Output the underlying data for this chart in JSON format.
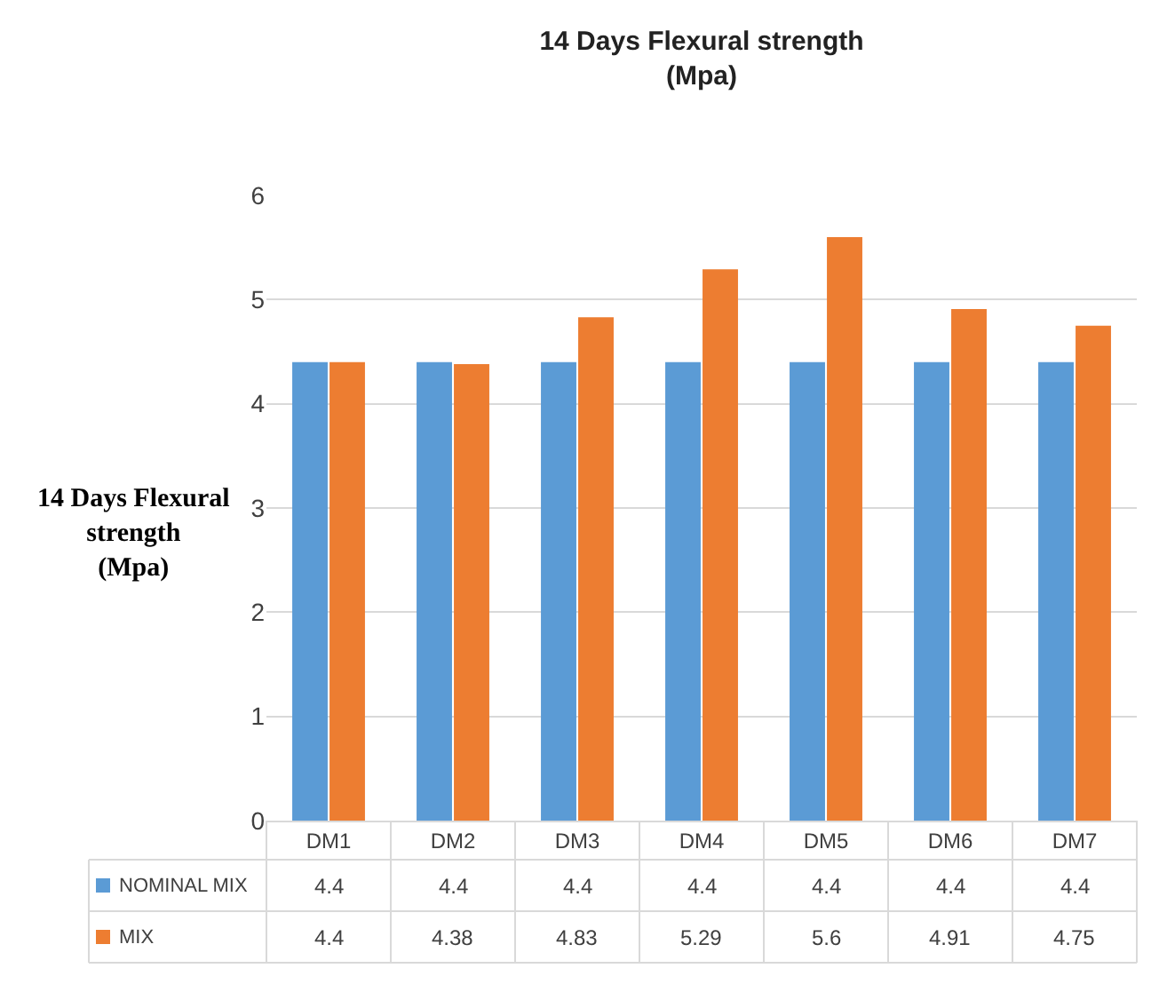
{
  "chart_data": {
    "type": "bar",
    "title": "14 Days Flexural strength\n(Mpa)",
    "ylabel": "14 Days Flexural\nstrength\n(Mpa)",
    "categories": [
      "DM1",
      "DM2",
      "DM3",
      "DM4",
      "DM5",
      "DM6",
      "DM7"
    ],
    "series": [
      {
        "name": "NOMINAL MIX",
        "color": "#5b9bd5",
        "values": [
          4.4,
          4.4,
          4.4,
          4.4,
          4.4,
          4.4,
          4.4
        ]
      },
      {
        "name": "MIX",
        "color": "#ed7d31",
        "values": [
          4.4,
          4.38,
          4.83,
          5.29,
          5.6,
          4.91,
          4.75
        ]
      }
    ],
    "ylim": [
      0,
      6
    ],
    "yticks": [
      0,
      1,
      2,
      3,
      4,
      5,
      6
    ],
    "grid": "y",
    "legend": "bottom left",
    "data_labels": true
  }
}
